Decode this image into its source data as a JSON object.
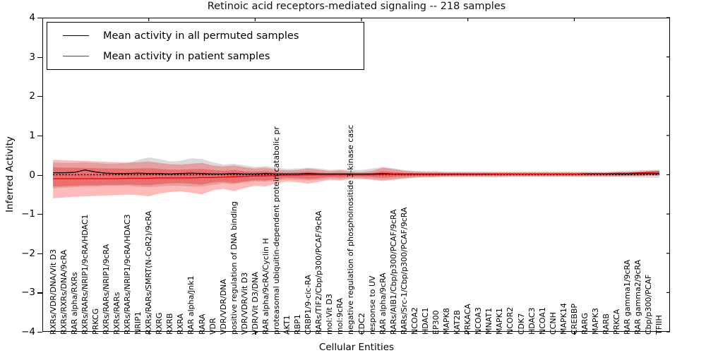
{
  "chart_data": {
    "type": "line",
    "title": "Retinoic acid receptors-mediated signaling -- 218 samples",
    "xlabel": "Cellular Entities",
    "ylabel": "Inferred Activity",
    "ylim": [
      -4,
      4
    ],
    "yticks": [
      4,
      3,
      2,
      1,
      0,
      -1,
      -2,
      -3,
      -4
    ],
    "xticks": [
      10,
      20,
      30,
      40,
      50
    ],
    "grid": false,
    "legend_position": "upper left",
    "zero_line": {
      "style": "dotted",
      "color": "#000000",
      "y": 0
    },
    "colors": {
      "permuted": "#000000",
      "patient": "#ff0000",
      "patient_band": "rgba(255,0,0,0.27)",
      "patient_inner_band": "rgba(255,0,0,0.30)",
      "permuted_band": "rgba(125,125,125,0.28)"
    },
    "categories": [
      "RXRs/VDR/DNA/Vit D3",
      "RXRs/RXRs/DNA/9cRA",
      "RAR alpha/RXRs",
      "RXRs/RARs/NRIP1/9cRA/HDAC1",
      "PRKCG",
      "RXRs/RARs/NRIP1/9cRA",
      "RXRs/RARs",
      "RXRs/RARs/NRIP1/9cRA/HDAC3",
      "NRIP1",
      "RXRs/RARs/SMRT(N-CoR2)/9cRA",
      "RXRG",
      "RXRB",
      "RXRA",
      "RAR alpha/Jnk1",
      "RARA",
      "VDR",
      "VDR/VDR/DNA",
      "positive regulation of DNA binding",
      "VDR/VDR/Vit D3",
      "VDR/Vit D3/DNA",
      "RAR alpha/9cRA/Cyclin H",
      "proteasomal ubiquitin-dependent protein catabolic pr",
      "AKT1",
      "RBP1",
      "CRBP1/9-cic-RA",
      "RARs/TIF2/Cbp/p300/PCAF/9cRA",
      "mol:Vit D3",
      "mol:9cRA",
      "negative regulation of phosphoinositide 3-kinase casc",
      "CDC2",
      "response to UV",
      "RAR alpha/9cRA",
      "RARs/AIB1/Cbp/p300/PCAF/9cRA",
      "RARs/Src-1/Cbp/p300/PCAF/9cRA",
      "NCOA2",
      "HDAC1",
      "EP300",
      "MAPK8",
      "KAT2B",
      "PRKACA",
      "NCOA3",
      "MNAT1",
      "MAPK1",
      "NCOR2",
      "CDK7",
      "HDAC3",
      "NCOA1",
      "CCNH",
      "MAPK14",
      "CREBBP",
      "RARG",
      "MAPK3",
      "RARB",
      "PRKCA",
      "RAR gamma1/9cRA",
      "RAR gamma2/9cRA",
      "Cbp/p300/PCAF",
      "TFIIH"
    ],
    "series": [
      {
        "name": "Mean activity in all permuted samples",
        "color": "#000000",
        "values": [
          0.05,
          0.05,
          0.06,
          0.12,
          0.07,
          0.04,
          0.03,
          0.03,
          0.04,
          0.03,
          0.03,
          0.02,
          0.03,
          0.04,
          0.03,
          0.02,
          0.02,
          0.03,
          0.02,
          0.02,
          0.03,
          0.02,
          0.02,
          0.02,
          0.03,
          0.02,
          0.02,
          0.02,
          0.02,
          0.02,
          0.02,
          0.03,
          0.02,
          0.02,
          0.02,
          0.02,
          0.02,
          0.02,
          0.02,
          0.02,
          0.02,
          0.02,
          0.02,
          0.02,
          0.02,
          0.02,
          0.02,
          0.02,
          0.02,
          0.02,
          0.02,
          0.02,
          0.02,
          0.02,
          0.02,
          0.03,
          0.03,
          0.03
        ],
        "band_hi": [
          0.32,
          0.3,
          0.3,
          0.32,
          0.3,
          0.28,
          0.28,
          0.3,
          0.38,
          0.44,
          0.4,
          0.34,
          0.36,
          0.42,
          0.4,
          0.32,
          0.26,
          0.28,
          0.24,
          0.2,
          0.22,
          0.18,
          0.15,
          0.16,
          0.18,
          0.16,
          0.12,
          0.14,
          0.12,
          0.12,
          0.16,
          0.2,
          0.16,
          0.12,
          0.1,
          0.09,
          0.09,
          0.08,
          0.08,
          0.08,
          0.08,
          0.08,
          0.08,
          0.08,
          0.08,
          0.08,
          0.08,
          0.08,
          0.08,
          0.08,
          0.08,
          0.08,
          0.08,
          0.09,
          0.1,
          0.11,
          0.12,
          0.13
        ],
        "band_lo": [
          -0.35,
          -0.33,
          -0.32,
          -0.3,
          -0.3,
          -0.28,
          -0.28,
          -0.28,
          -0.3,
          -0.32,
          -0.3,
          -0.28,
          -0.28,
          -0.3,
          -0.3,
          -0.26,
          -0.22,
          -0.24,
          -0.2,
          -0.17,
          -0.18,
          -0.15,
          -0.12,
          -0.13,
          -0.15,
          -0.13,
          -0.1,
          -0.11,
          -0.09,
          -0.09,
          -0.11,
          -0.13,
          -0.11,
          -0.09,
          -0.07,
          -0.06,
          -0.06,
          -0.06,
          -0.06,
          -0.06,
          -0.06,
          -0.06,
          -0.06,
          -0.06,
          -0.06,
          -0.06,
          -0.06,
          -0.06,
          -0.06,
          -0.06,
          -0.06,
          -0.06,
          -0.06,
          -0.06,
          -0.07,
          -0.07,
          -0.08,
          -0.08
        ]
      },
      {
        "name": "Mean activity in patient samples",
        "color": "#ff0000",
        "values": [
          -0.1,
          -0.1,
          -0.1,
          -0.1,
          -0.1,
          -0.1,
          -0.1,
          -0.09,
          -0.09,
          -0.09,
          -0.08,
          -0.08,
          -0.08,
          -0.08,
          -0.07,
          -0.07,
          -0.06,
          -0.05,
          -0.04,
          -0.03,
          -0.03,
          -0.02,
          -0.01,
          -0.01,
          0.0,
          0.0,
          0.0,
          0.0,
          0.0,
          0.0,
          0.0,
          0.01,
          0.01,
          0.01,
          0.01,
          0.01,
          0.01,
          0.01,
          0.01,
          0.01,
          0.01,
          0.01,
          0.02,
          0.02,
          0.02,
          0.02,
          0.02,
          0.02,
          0.02,
          0.02,
          0.03,
          0.03,
          0.03,
          0.04,
          0.04,
          0.05,
          0.06,
          0.07
        ],
        "band_hi": [
          0.38,
          0.37,
          0.36,
          0.35,
          0.34,
          0.33,
          0.32,
          0.31,
          0.32,
          0.34,
          0.3,
          0.27,
          0.26,
          0.28,
          0.3,
          0.24,
          0.21,
          0.24,
          0.19,
          0.16,
          0.18,
          0.13,
          0.11,
          0.12,
          0.16,
          0.13,
          0.09,
          0.11,
          0.08,
          0.07,
          0.1,
          0.18,
          0.15,
          0.1,
          0.08,
          0.07,
          0.07,
          0.06,
          0.06,
          0.06,
          0.06,
          0.06,
          0.06,
          0.06,
          0.06,
          0.06,
          0.06,
          0.06,
          0.06,
          0.06,
          0.06,
          0.06,
          0.06,
          0.07,
          0.07,
          0.08,
          0.1,
          0.11
        ],
        "band_lo": [
          -0.6,
          -0.58,
          -0.56,
          -0.55,
          -0.54,
          -0.53,
          -0.52,
          -0.51,
          -0.52,
          -0.55,
          -0.48,
          -0.44,
          -0.42,
          -0.46,
          -0.5,
          -0.4,
          -0.36,
          -0.42,
          -0.34,
          -0.28,
          -0.3,
          -0.22,
          -0.17,
          -0.19,
          -0.23,
          -0.18,
          -0.13,
          -0.15,
          -0.11,
          -0.11,
          -0.13,
          -0.16,
          -0.13,
          -0.1,
          -0.08,
          -0.07,
          -0.06,
          -0.05,
          -0.05,
          -0.05,
          -0.05,
          -0.05,
          -0.05,
          -0.04,
          -0.04,
          -0.04,
          -0.04,
          -0.04,
          -0.04,
          -0.04,
          -0.04,
          -0.04,
          -0.04,
          -0.04,
          -0.03,
          -0.03,
          -0.02,
          -0.02
        ],
        "inner_hi": [
          0.19,
          0.18,
          0.18,
          0.17,
          0.17,
          0.16,
          0.16,
          0.15,
          0.16,
          0.17,
          0.15,
          0.13,
          0.13,
          0.14,
          0.15,
          0.12,
          0.1,
          0.12,
          0.09,
          0.08,
          0.09,
          0.06,
          0.05,
          0.06,
          0.08,
          0.06,
          0.04,
          0.05,
          0.04,
          0.03,
          0.05,
          0.09,
          0.07,
          0.05,
          0.04,
          0.03,
          0.03,
          0.03,
          0.03,
          0.03,
          0.03,
          0.03,
          0.03,
          0.03,
          0.03,
          0.03,
          0.03,
          0.03,
          0.03,
          0.03,
          0.03,
          0.03,
          0.03,
          0.03,
          0.03,
          0.04,
          0.05,
          0.05
        ],
        "inner_lo": [
          -0.3,
          -0.29,
          -0.28,
          -0.27,
          -0.27,
          -0.26,
          -0.26,
          -0.25,
          -0.26,
          -0.27,
          -0.24,
          -0.22,
          -0.21,
          -0.23,
          -0.25,
          -0.2,
          -0.18,
          -0.21,
          -0.17,
          -0.14,
          -0.15,
          -0.11,
          -0.08,
          -0.09,
          -0.11,
          -0.09,
          -0.06,
          -0.07,
          -0.05,
          -0.05,
          -0.06,
          -0.08,
          -0.06,
          -0.05,
          -0.04,
          -0.03,
          -0.03,
          -0.02,
          -0.02,
          -0.02,
          -0.02,
          -0.02,
          -0.02,
          -0.02,
          -0.02,
          -0.02,
          -0.02,
          -0.02,
          -0.02,
          -0.02,
          -0.02,
          -0.02,
          -0.02,
          -0.02,
          -0.02,
          -0.02,
          -0.01,
          -0.01
        ]
      }
    ]
  },
  "legend": {
    "entries": [
      {
        "label": "Mean activity in all permuted samples",
        "color": "#000000"
      },
      {
        "label": "Mean activity in patient samples",
        "color": "#ff0000"
      }
    ]
  }
}
